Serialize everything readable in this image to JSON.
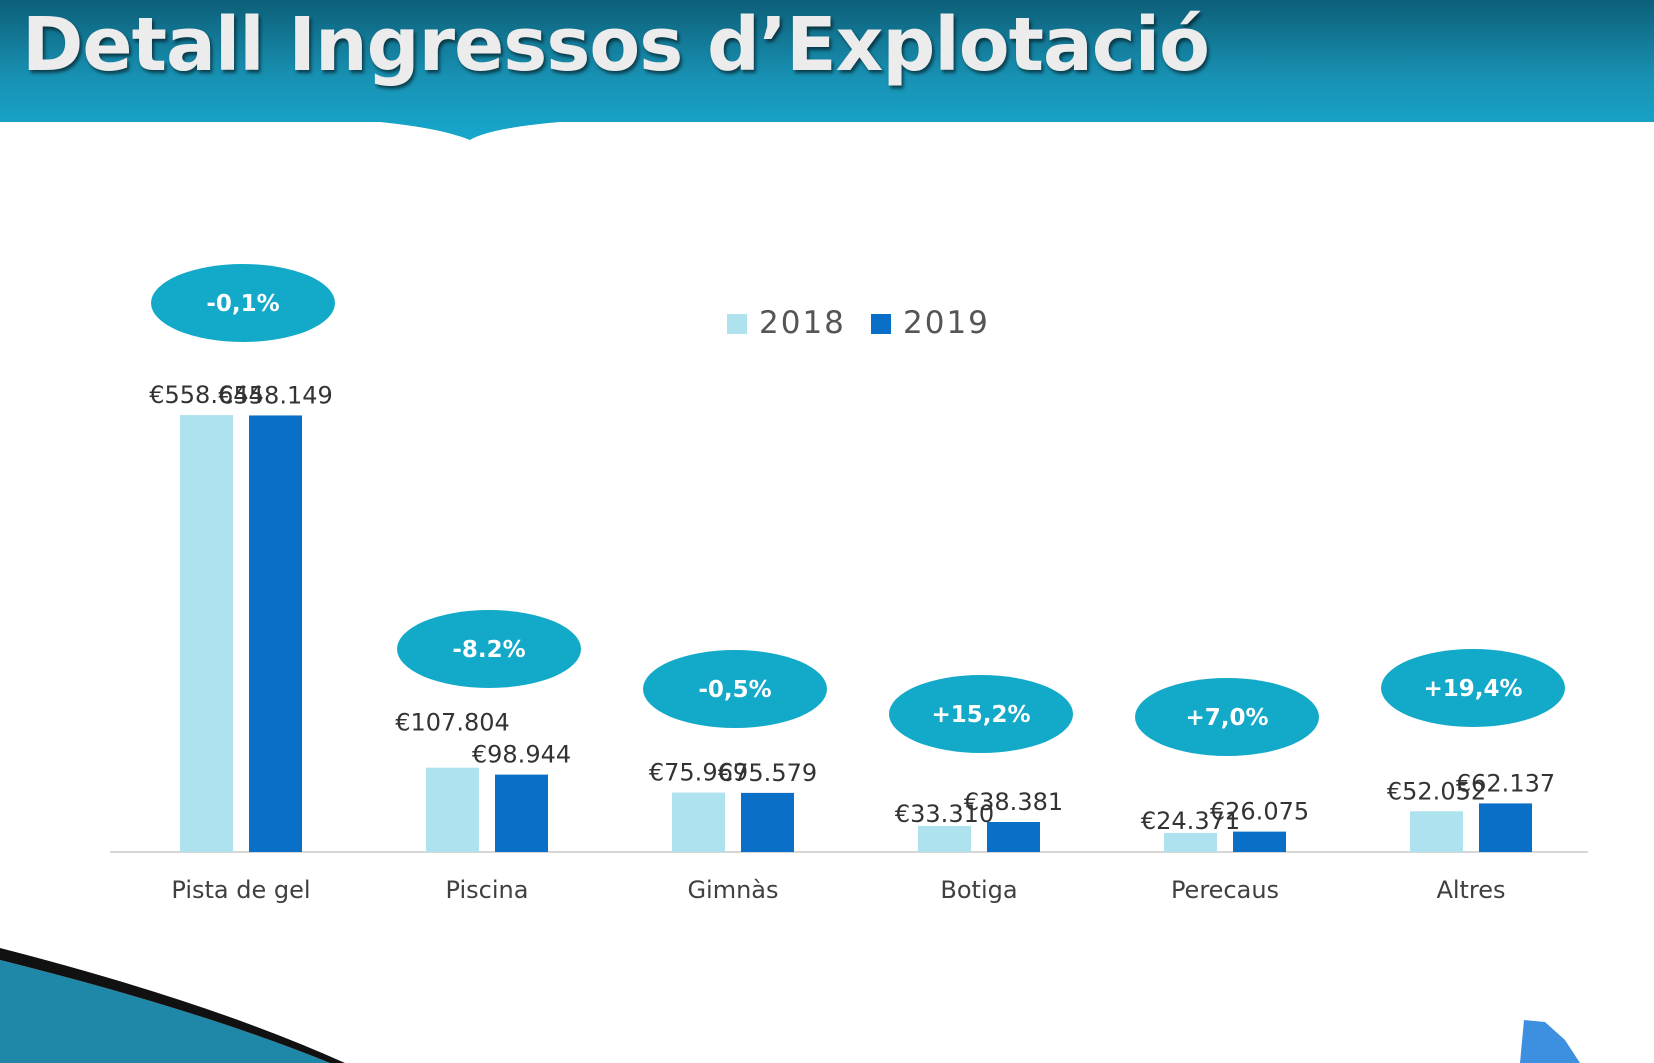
{
  "page": {
    "title": "Detall Ingressos d’Explotació"
  },
  "colors": {
    "header": "#1a9fbe",
    "header_dark": "#0f6e86",
    "series_2018": "#aee2ee",
    "series_2019": "#0a6fc7",
    "badge": "#13a9c9"
  },
  "chart_data": {
    "type": "bar",
    "categories": [
      "Pista de gel",
      "Piscina",
      "Gimnàs",
      "Botiga",
      "Perecaus",
      "Altres"
    ],
    "series": [
      {
        "name": "2018",
        "values": [
          558644,
          107804,
          75969,
          33310,
          24371,
          52052
        ]
      },
      {
        "name": "2019",
        "values": [
          558149,
          98944,
          75579,
          38381,
          26075,
          62137
        ]
      }
    ],
    "value_labels": [
      [
        "€558.644",
        "€107.804",
        "€75.969",
        "€33.310",
        "€24.371",
        "€52.052"
      ],
      [
        "€558.149",
        "€98.944",
        "€75.579",
        "€38.381",
        "€26.075",
        "€62.137"
      ]
    ],
    "changes": [
      "-0,1%",
      "-8.2%",
      "-0,5%",
      "+15,2%",
      "+7,0%",
      "+19,4%"
    ],
    "ylim": [
      0,
      560000
    ],
    "legend": {
      "entries": [
        "2018",
        "2019"
      ],
      "position": "top-center"
    },
    "grid": false,
    "xlabel": "",
    "ylabel": "",
    "title": ""
  }
}
